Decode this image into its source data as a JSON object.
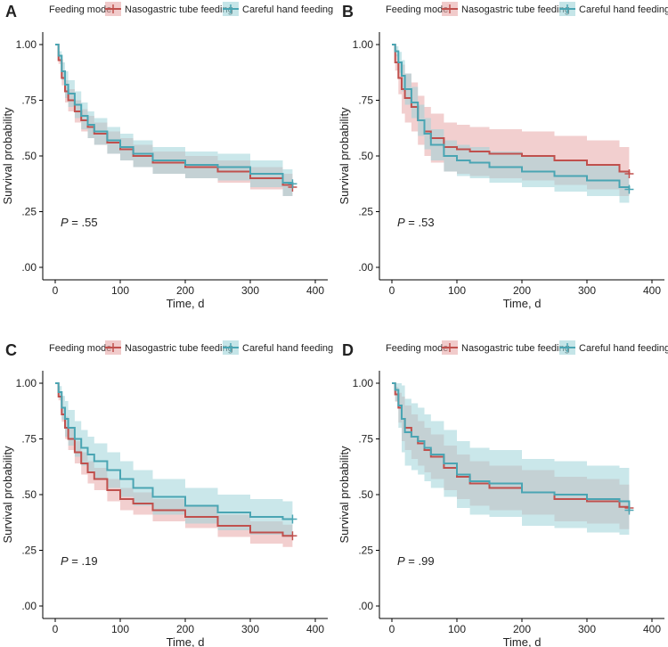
{
  "legend": {
    "title": "Feeding mode",
    "items": [
      {
        "label": "Nasogastric tube feeding",
        "color": "#c0504d"
      },
      {
        "label": "Careful hand feeding",
        "color": "#4aa5b3"
      }
    ]
  },
  "colors": {
    "ng_line": "#c0504d",
    "ng_band": "#e8a8a8",
    "hf_line": "#4aa5b3",
    "hf_band": "#9fd3d9",
    "overlap": "#a9a3a2"
  },
  "chart_data": [
    {
      "panel": "A",
      "type": "line",
      "title": "",
      "xlabel": "Time, d",
      "ylabel": "Survival probability",
      "xlim": [
        0,
        400
      ],
      "ylim": [
        0,
        1
      ],
      "xticks": [
        "0",
        "100",
        "200",
        "300",
        "400"
      ],
      "yticks": [
        ".00",
        ".25",
        ".50",
        ".75",
        "1.00"
      ],
      "annotation": {
        "italic": "P",
        "rest": " = .55"
      },
      "x": [
        0,
        5,
        10,
        15,
        20,
        30,
        40,
        50,
        60,
        80,
        100,
        120,
        150,
        200,
        250,
        300,
        350,
        365
      ],
      "series": [
        {
          "name": "Nasogastric tube feeding",
          "values": [
            1.0,
            0.93,
            0.85,
            0.79,
            0.75,
            0.7,
            0.66,
            0.63,
            0.6,
            0.56,
            0.53,
            0.5,
            0.47,
            0.45,
            0.43,
            0.4,
            0.37,
            0.36
          ],
          "ci_width": 0.05
        },
        {
          "name": "Careful hand feeding",
          "values": [
            1.0,
            0.95,
            0.88,
            0.82,
            0.78,
            0.73,
            0.68,
            0.64,
            0.61,
            0.57,
            0.54,
            0.51,
            0.48,
            0.46,
            0.45,
            0.42,
            0.38,
            0.375
          ],
          "ci_width": 0.06
        }
      ]
    },
    {
      "panel": "B",
      "type": "line",
      "title": "",
      "xlabel": "Time, d",
      "ylabel": "Survival probability",
      "xlim": [
        0,
        400
      ],
      "ylim": [
        0,
        1
      ],
      "xticks": [
        "0",
        "100",
        "200",
        "300",
        "400"
      ],
      "yticks": [
        ".00",
        ".25",
        ".50",
        ".75",
        "1.00"
      ],
      "annotation": {
        "italic": "P",
        "rest": " = .53"
      },
      "x": [
        0,
        5,
        10,
        15,
        20,
        30,
        40,
        50,
        60,
        80,
        100,
        120,
        150,
        200,
        250,
        300,
        350,
        365
      ],
      "series": [
        {
          "name": "Nasogastric tube feeding",
          "values": [
            1.0,
            0.92,
            0.85,
            0.8,
            0.76,
            0.72,
            0.66,
            0.61,
            0.58,
            0.54,
            0.53,
            0.52,
            0.51,
            0.5,
            0.48,
            0.46,
            0.43,
            0.42
          ],
          "ci_width": 0.11
        },
        {
          "name": "Careful hand feeding",
          "values": [
            1.0,
            0.97,
            0.92,
            0.86,
            0.8,
            0.74,
            0.66,
            0.6,
            0.55,
            0.5,
            0.48,
            0.47,
            0.45,
            0.43,
            0.41,
            0.39,
            0.36,
            0.35
          ],
          "ci_width": 0.07
        }
      ]
    },
    {
      "panel": "C",
      "type": "line",
      "title": "",
      "xlabel": "Time, d",
      "ylabel": "Survival probability",
      "xlim": [
        0,
        400
      ],
      "ylim": [
        0,
        1
      ],
      "xticks": [
        "0",
        "100",
        "200",
        "300",
        "400"
      ],
      "yticks": [
        ".00",
        ".25",
        ".50",
        ".75",
        "1.00"
      ],
      "annotation": {
        "italic": "P",
        "rest": " = .19"
      },
      "x": [
        0,
        5,
        10,
        15,
        20,
        30,
        40,
        50,
        60,
        80,
        100,
        120,
        150,
        200,
        250,
        300,
        350,
        365
      ],
      "series": [
        {
          "name": "Nasogastric tube feeding",
          "values": [
            1.0,
            0.94,
            0.86,
            0.8,
            0.75,
            0.69,
            0.64,
            0.6,
            0.57,
            0.52,
            0.48,
            0.46,
            0.43,
            0.4,
            0.36,
            0.33,
            0.315,
            0.315
          ],
          "ci_width": 0.05
        },
        {
          "name": "Careful hand feeding",
          "values": [
            1.0,
            0.96,
            0.89,
            0.84,
            0.8,
            0.75,
            0.71,
            0.68,
            0.65,
            0.61,
            0.57,
            0.53,
            0.49,
            0.45,
            0.42,
            0.4,
            0.39,
            0.39
          ],
          "ci_width": 0.08
        }
      ]
    },
    {
      "panel": "D",
      "type": "line",
      "title": "",
      "xlabel": "Time, d",
      "ylabel": "Survival probability",
      "xlim": [
        0,
        400
      ],
      "ylim": [
        0,
        1
      ],
      "xticks": [
        "0",
        "100",
        "200",
        "300",
        "400"
      ],
      "yticks": [
        ".00",
        ".25",
        ".50",
        ".75",
        "1.00"
      ],
      "annotation": {
        "italic": "P",
        "rest": " = .99"
      },
      "x": [
        0,
        5,
        10,
        15,
        20,
        30,
        40,
        50,
        60,
        80,
        100,
        120,
        150,
        200,
        250,
        300,
        350,
        365
      ],
      "series": [
        {
          "name": "Nasogastric tube feeding",
          "values": [
            1.0,
            0.95,
            0.89,
            0.84,
            0.8,
            0.76,
            0.73,
            0.7,
            0.67,
            0.62,
            0.58,
            0.55,
            0.53,
            0.51,
            0.48,
            0.47,
            0.445,
            0.44
          ],
          "ci_width": 0.1
        },
        {
          "name": "Careful hand feeding",
          "values": [
            1.0,
            0.97,
            0.9,
            0.84,
            0.78,
            0.76,
            0.74,
            0.71,
            0.68,
            0.64,
            0.59,
            0.56,
            0.55,
            0.51,
            0.5,
            0.48,
            0.47,
            0.43
          ],
          "ci_width": 0.15
        }
      ]
    }
  ]
}
